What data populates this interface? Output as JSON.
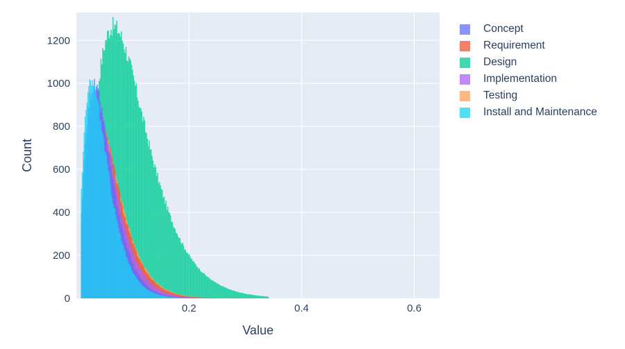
{
  "chart_data": {
    "type": "histogram",
    "title": "",
    "xlabel": "Value",
    "ylabel": "Count",
    "xlim": [
      0.0,
      0.645
    ],
    "ylim": [
      0,
      1330
    ],
    "xticks": [
      0.2,
      0.4,
      0.6
    ],
    "xtick_labels": [
      "0.2",
      "0.4",
      "0.6"
    ],
    "yticks": [
      0,
      200,
      400,
      600,
      800,
      1000,
      1200
    ],
    "ytick_labels": [
      "0",
      "200",
      "400",
      "600",
      "800",
      "1000",
      "1200"
    ],
    "barmode": "overlay",
    "grid": true,
    "legend_position": "right",
    "plot_bgcolor": "#e5ecf6",
    "series": [
      {
        "name": "Concept",
        "color": "#636efa",
        "peak_x": 0.031,
        "peak_count": 990,
        "shape": 2.7
      },
      {
        "name": "Requirement",
        "color": "#ef553b",
        "peak_x": 0.037,
        "peak_count": 860,
        "shape": 2.7
      },
      {
        "name": "Design",
        "color": "#00cc96",
        "peak_x": 0.066,
        "peak_count": 1265,
        "shape": 3.0
      },
      {
        "name": "Implementation",
        "color": "#ab63fa",
        "peak_x": 0.033,
        "peak_count": 930,
        "shape": 2.6
      },
      {
        "name": "Testing",
        "color": "#ffa15a",
        "peak_x": 0.038,
        "peak_count": 840,
        "shape": 2.7
      },
      {
        "name": "Install and Maintenance",
        "color": "#19d3f3",
        "peak_x": 0.027,
        "peak_count": 1000,
        "shape": 2.5
      }
    ]
  },
  "legend": {
    "items": [
      {
        "label": "Concept",
        "color": "#636efa"
      },
      {
        "label": "Requirement",
        "color": "#ef553b"
      },
      {
        "label": "Design",
        "color": "#00cc96"
      },
      {
        "label": "Implementation",
        "color": "#ab63fa"
      },
      {
        "label": "Testing",
        "color": "#ffa15a"
      },
      {
        "label": "Install and Maintenance",
        "color": "#19d3f3"
      }
    ]
  }
}
